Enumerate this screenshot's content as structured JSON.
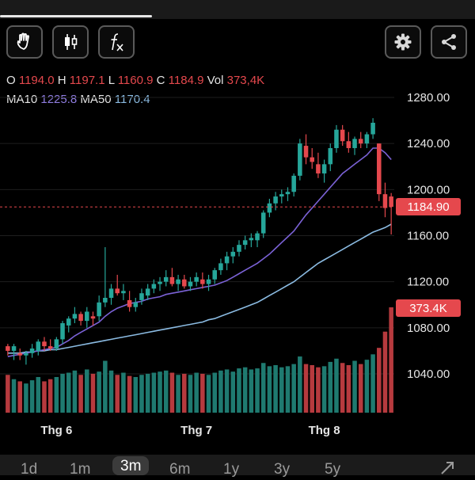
{
  "toolbar": {
    "tools": [
      {
        "name": "hand-icon"
      },
      {
        "name": "candlestick-icon"
      },
      {
        "name": "function-icon",
        "label": "fx"
      }
    ],
    "right": [
      {
        "name": "gear-icon"
      },
      {
        "name": "share-icon"
      }
    ]
  },
  "ohlc": {
    "o_label": "O",
    "o": "1194.0",
    "h_label": "H",
    "h": "1197.1",
    "l_label": "L",
    "l": "1160.9",
    "c_label": "C",
    "c": "1184.9",
    "vol_label": "Vol",
    "vol": "373,4K"
  },
  "ma": {
    "ma10_label": "MA10",
    "ma10": "1225.8",
    "ma50_label": "MA50",
    "ma50": "1170.4"
  },
  "price_badge": "1184.90",
  "volume_badge": "373.4K",
  "ranges": [
    {
      "label": "1d",
      "active": false
    },
    {
      "label": "1m",
      "active": false
    },
    {
      "label": "3m",
      "active": true
    },
    {
      "label": "6m",
      "active": false
    },
    {
      "label": "1y",
      "active": false
    },
    {
      "label": "3y",
      "active": false
    },
    {
      "label": "5y",
      "active": false
    }
  ],
  "expand_icon": "expand-icon",
  "colors": {
    "up": "#26a69a",
    "down": "#e5484d",
    "ma10": "#7b62d6",
    "ma50": "#8bbbe2"
  },
  "chart_data": {
    "type": "candlestick",
    "y_ticks": [
      "1280.00",
      "1240.00",
      "1200.00",
      "1160.00",
      "1120.00",
      "1080.00",
      "1040.00"
    ],
    "y_tick_values": [
      1280,
      1240,
      1200,
      1160,
      1120,
      1080,
      1040
    ],
    "x_ticks": [
      {
        "label": "Thg 6",
        "index": 8
      },
      {
        "label": "Thg 7",
        "index": 31
      },
      {
        "label": "Thg 8",
        "index": 52
      }
    ],
    "last_price": 1184.9,
    "candles": [
      [
        1064,
        1066,
        1056,
        1060
      ],
      [
        1060,
        1066,
        1052,
        1064
      ],
      [
        1058,
        1062,
        1052,
        1056
      ],
      [
        1056,
        1060,
        1048,
        1058
      ],
      [
        1058,
        1066,
        1054,
        1062
      ],
      [
        1060,
        1070,
        1056,
        1068
      ],
      [
        1068,
        1072,
        1060,
        1064
      ],
      [
        1064,
        1070,
        1060,
        1062
      ],
      [
        1062,
        1072,
        1060,
        1070
      ],
      [
        1070,
        1086,
        1066,
        1084
      ],
      [
        1082,
        1090,
        1076,
        1088
      ],
      [
        1088,
        1098,
        1084,
        1092
      ],
      [
        1092,
        1094,
        1082,
        1086
      ],
      [
        1086,
        1098,
        1080,
        1094
      ],
      [
        1090,
        1094,
        1082,
        1088
      ],
      [
        1090,
        1108,
        1086,
        1102
      ],
      [
        1102,
        1150,
        1098,
        1106
      ],
      [
        1106,
        1118,
        1100,
        1114
      ],
      [
        1114,
        1126,
        1108,
        1110
      ],
      [
        1110,
        1118,
        1104,
        1112
      ],
      [
        1104,
        1112,
        1094,
        1098
      ],
      [
        1098,
        1106,
        1094,
        1102
      ],
      [
        1104,
        1114,
        1100,
        1110
      ],
      [
        1108,
        1118,
        1104,
        1114
      ],
      [
        1114,
        1122,
        1110,
        1118
      ],
      [
        1118,
        1124,
        1112,
        1120
      ],
      [
        1120,
        1130,
        1116,
        1124
      ],
      [
        1124,
        1132,
        1116,
        1118
      ],
      [
        1118,
        1126,
        1112,
        1122
      ],
      [
        1122,
        1126,
        1114,
        1116
      ],
      [
        1116,
        1124,
        1112,
        1120
      ],
      [
        1120,
        1128,
        1116,
        1124
      ],
      [
        1122,
        1128,
        1114,
        1118
      ],
      [
        1118,
        1126,
        1112,
        1122
      ],
      [
        1122,
        1132,
        1118,
        1130
      ],
      [
        1130,
        1140,
        1126,
        1136
      ],
      [
        1136,
        1146,
        1130,
        1142
      ],
      [
        1142,
        1150,
        1136,
        1146
      ],
      [
        1146,
        1156,
        1142,
        1152
      ],
      [
        1152,
        1160,
        1148,
        1156
      ],
      [
        1156,
        1162,
        1150,
        1158
      ],
      [
        1156,
        1164,
        1150,
        1162
      ],
      [
        1162,
        1182,
        1158,
        1180
      ],
      [
        1180,
        1192,
        1176,
        1188
      ],
      [
        1188,
        1198,
        1182,
        1194
      ],
      [
        1194,
        1200,
        1188,
        1196
      ],
      [
        1196,
        1202,
        1190,
        1198
      ],
      [
        1198,
        1214,
        1194,
        1212
      ],
      [
        1212,
        1244,
        1208,
        1240
      ],
      [
        1238,
        1248,
        1222,
        1228
      ],
      [
        1228,
        1236,
        1218,
        1224
      ],
      [
        1222,
        1232,
        1210,
        1214
      ],
      [
        1214,
        1226,
        1206,
        1222
      ],
      [
        1222,
        1240,
        1216,
        1236
      ],
      [
        1236,
        1256,
        1232,
        1252
      ],
      [
        1252,
        1256,
        1238,
        1242
      ],
      [
        1242,
        1250,
        1232,
        1236
      ],
      [
        1236,
        1246,
        1230,
        1244
      ],
      [
        1244,
        1250,
        1236,
        1240
      ],
      [
        1240,
        1250,
        1236,
        1248
      ],
      [
        1248,
        1262,
        1244,
        1258
      ],
      [
        1240,
        1240,
        1190,
        1196
      ],
      [
        1196,
        1206,
        1176,
        1184
      ],
      [
        1194,
        1197,
        1161,
        1185
      ]
    ],
    "volume": [
      70,
      62,
      58,
      54,
      60,
      66,
      58,
      62,
      66,
      72,
      74,
      78,
      70,
      80,
      72,
      76,
      96,
      78,
      70,
      74,
      68,
      66,
      70,
      72,
      74,
      76,
      78,
      74,
      70,
      72,
      70,
      74,
      72,
      70,
      74,
      78,
      80,
      76,
      82,
      84,
      80,
      82,
      92,
      86,
      88,
      84,
      86,
      90,
      104,
      90,
      88,
      84,
      86,
      94,
      100,
      92,
      88,
      96,
      90,
      98,
      108,
      120,
      150,
      195
    ],
    "ma10": [
      1055,
      1056,
      1057,
      1058,
      1059,
      1060,
      1061,
      1062,
      1063,
      1066,
      1069,
      1073,
      1076,
      1079,
      1082,
      1085,
      1090,
      1094,
      1097,
      1099,
      1101,
      1102,
      1103,
      1105,
      1106,
      1107,
      1109,
      1110,
      1111,
      1112,
      1113,
      1114,
      1115,
      1116,
      1117,
      1119,
      1121,
      1124,
      1127,
      1130,
      1133,
      1136,
      1140,
      1144,
      1149,
      1154,
      1159,
      1164,
      1171,
      1178,
      1184,
      1190,
      1196,
      1202,
      1208,
      1214,
      1218,
      1222,
      1226,
      1230,
      1236,
      1236,
      1232,
      1226
    ],
    "ma50": [
      1058,
      1058,
      1058,
      1059,
      1059,
      1060,
      1060,
      1061,
      1061,
      1062,
      1063,
      1064,
      1065,
      1066,
      1067,
      1068,
      1069,
      1070,
      1071,
      1072,
      1073,
      1074,
      1075,
      1076,
      1077,
      1078,
      1079,
      1080,
      1081,
      1082,
      1083,
      1084,
      1085,
      1087,
      1088,
      1090,
      1092,
      1094,
      1096,
      1098,
      1100,
      1102,
      1105,
      1108,
      1111,
      1114,
      1117,
      1120,
      1124,
      1128,
      1132,
      1136,
      1139,
      1142,
      1145,
      1148,
      1151,
      1154,
      1157,
      1160,
      1163,
      1165,
      1167,
      1170
    ]
  }
}
